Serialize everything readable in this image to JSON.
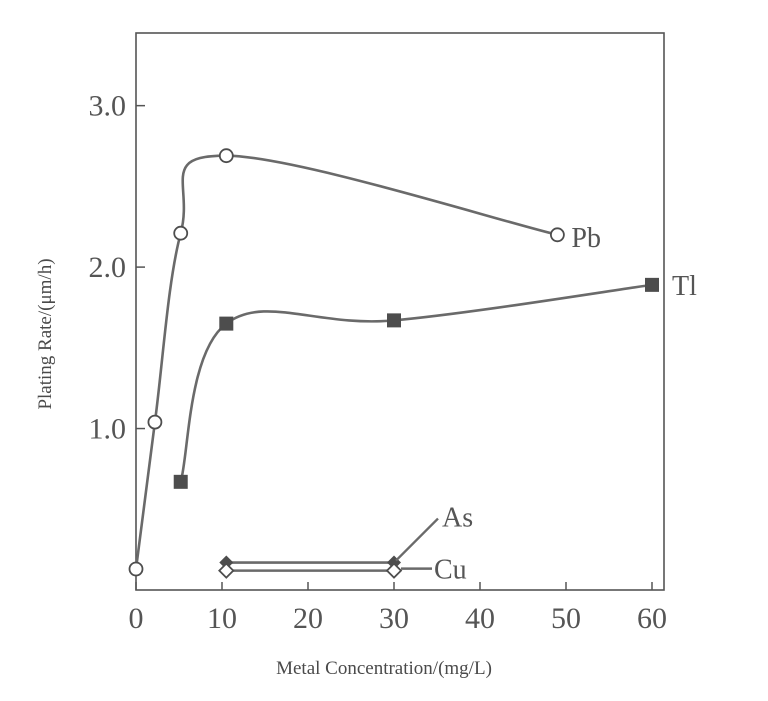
{
  "chart_data": {
    "type": "line",
    "xlabel": "Metal Concentration/(mg/L)",
    "ylabel": "Plating Rate/(μm/h)",
    "xlim": [
      0,
      60
    ],
    "ylim": [
      0,
      3.45
    ],
    "x_ticks": [
      {
        "value": 0,
        "label": "0"
      },
      {
        "value": 10,
        "label": "10"
      },
      {
        "value": 20,
        "label": "20"
      },
      {
        "value": 30,
        "label": "30"
      },
      {
        "value": 40,
        "label": "40"
      },
      {
        "value": 50,
        "label": "50"
      },
      {
        "value": 60,
        "label": "60"
      }
    ],
    "y_ticks": [
      {
        "value": 1.0,
        "label": "1.0"
      },
      {
        "value": 2.0,
        "label": "2.0"
      },
      {
        "value": 3.0,
        "label": "3.0"
      }
    ],
    "grid": false,
    "legend": "inline labels at line ends",
    "series": [
      {
        "name": "Pb",
        "marker": "open-circle",
        "x": [
          0,
          2.2,
          5.2,
          10.5,
          49
        ],
        "y": [
          0.13,
          1.04,
          2.21,
          2.69,
          2.2
        ]
      },
      {
        "name": "Tl",
        "marker": "filled-square",
        "x": [
          5.2,
          10.5,
          30,
          60
        ],
        "y": [
          0.67,
          1.65,
          1.67,
          1.89
        ]
      },
      {
        "name": "As",
        "marker": "filled-diamond",
        "x": [
          10.5,
          30
        ],
        "y": [
          0.17,
          0.17
        ]
      },
      {
        "name": "Cu",
        "marker": "open-diamond",
        "x": [
          10.5,
          30
        ],
        "y": [
          0.12,
          0.12
        ]
      }
    ],
    "colors": {
      "axis": "#555555",
      "line": "#6a6a6a",
      "marker_fill": "#4d4d4d",
      "background": "#ffffff"
    }
  }
}
